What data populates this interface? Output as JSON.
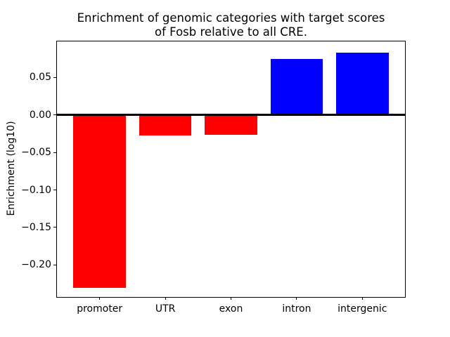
{
  "title": {
    "line1": "Enrichment of genomic categories with target scores",
    "line2": "of Fosb relative to all CRE."
  },
  "chart_data": {
    "type": "bar",
    "title": "Enrichment of genomic categories with target scores of Fosb relative to all CRE.",
    "xlabel": "",
    "ylabel": "Enrichment (log10)",
    "categories": [
      "promoter",
      "UTR",
      "exon",
      "intron",
      "intergenic"
    ],
    "values": [
      -0.2303,
      -0.027,
      -0.026,
      0.0745,
      0.0832
    ],
    "bar_colors": [
      "#ff0000",
      "#ff0000",
      "#ff0000",
      "#0000ff",
      "#0000ff"
    ],
    "negative_color": "#ff0000",
    "positive_color": "#0000ff",
    "axis_color": "#000000",
    "background_color": "#ffffff",
    "ylim": [
      -0.2427,
      0.0981
    ],
    "xlim": [
      -0.65,
      4.65
    ],
    "yticks": [
      {
        "value": 0.05,
        "label": "0.05"
      },
      {
        "value": 0.0,
        "label": "0.00"
      },
      {
        "value": -0.05,
        "label": "−0.05"
      },
      {
        "value": -0.1,
        "label": "−0.10"
      },
      {
        "value": -0.15,
        "label": "−0.15"
      },
      {
        "value": -0.2,
        "label": "−0.20"
      }
    ],
    "bar_width_fraction": 0.8,
    "zero_line": true,
    "grid": false,
    "legend": null
  }
}
